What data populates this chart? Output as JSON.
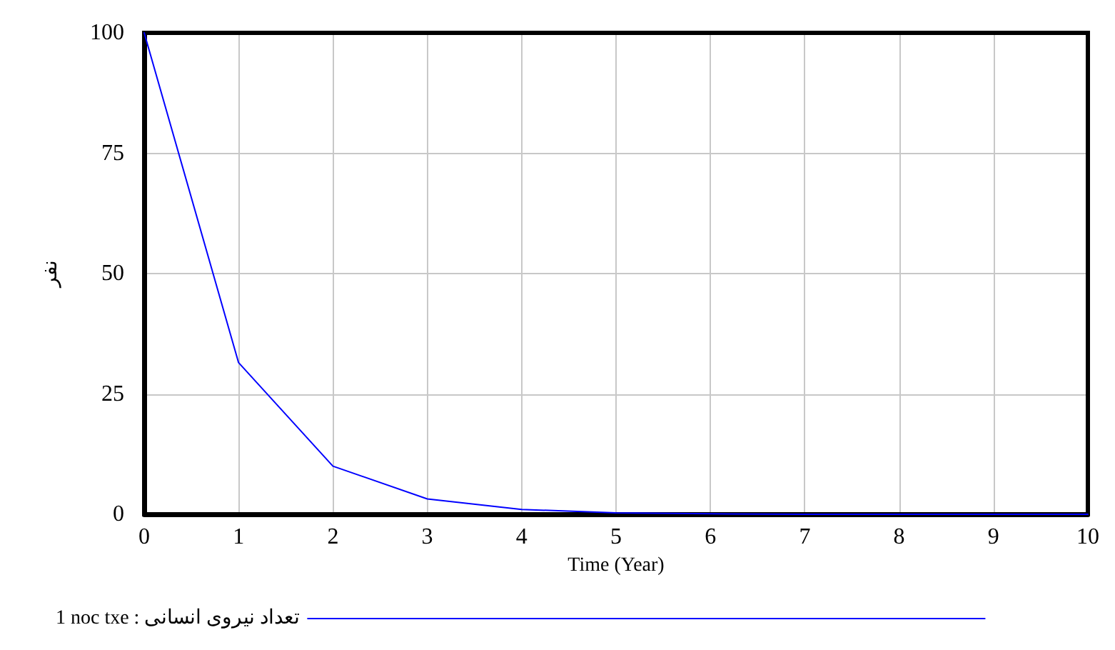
{
  "chart_data": {
    "type": "line",
    "xlabel": "Time (Year)",
    "ylabel": "نفر",
    "x": [
      0,
      1,
      2,
      3,
      4,
      5,
      6,
      7,
      8,
      9,
      10
    ],
    "series": [
      {
        "name": "1 noc txe : تعداد نیروی انسانی",
        "color": "#0000ff",
        "values": [
          100,
          31.5,
          10,
          3.2,
          1,
          0.3,
          0.1,
          0,
          0,
          0,
          0
        ]
      }
    ],
    "xlim": [
      0,
      10
    ],
    "xticks": [
      0,
      1,
      2,
      3,
      4,
      5,
      6,
      7,
      8,
      9,
      10
    ],
    "ylim": [
      0,
      100
    ],
    "yticks": [
      0,
      25,
      50,
      75,
      100
    ],
    "grid": true,
    "legend": "bottom left",
    "marker": "none",
    "line_style": "solid"
  }
}
